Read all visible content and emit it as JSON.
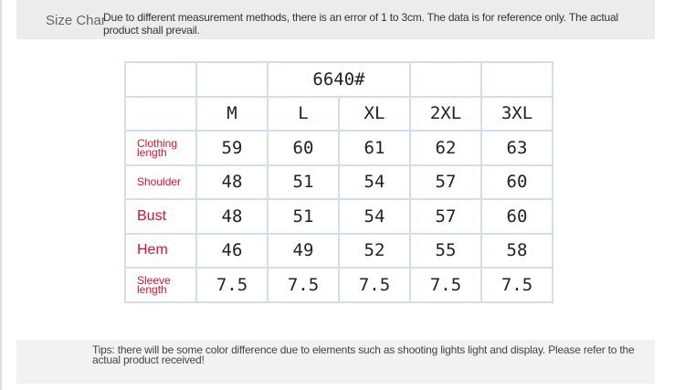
{
  "header": {
    "title": "Size Chart",
    "note": "Due to different measurement methods, there is an error of 1 to 3cm. The data is for reference only. The actual product shall prevail."
  },
  "table": {
    "model": "6640#",
    "sizes": [
      "M",
      "L",
      "XL",
      "2XL",
      "3XL"
    ],
    "rows": [
      {
        "label": "Clothing length",
        "values": [
          "59",
          "60",
          "61",
          "62",
          "63"
        ]
      },
      {
        "label": "Shoulder",
        "values": [
          "48",
          "51",
          "54",
          "57",
          "60"
        ]
      },
      {
        "label": "Bust",
        "values": [
          "48",
          "51",
          "54",
          "57",
          "60"
        ]
      },
      {
        "label": "Hem",
        "values": [
          "46",
          "49",
          "52",
          "55",
          "58"
        ]
      },
      {
        "label": "Sleeve length",
        "values": [
          "7.5",
          "7.5",
          "7.5",
          "7.5",
          "7.5"
        ]
      }
    ]
  },
  "footer": {
    "tips": "Tips: there will be some color difference due to elements such as shooting lights light and display. Please refer to the actual product received!"
  },
  "colors": {
    "label": "#e0102a",
    "border": "#d5dcec",
    "banner": "#ececec"
  }
}
